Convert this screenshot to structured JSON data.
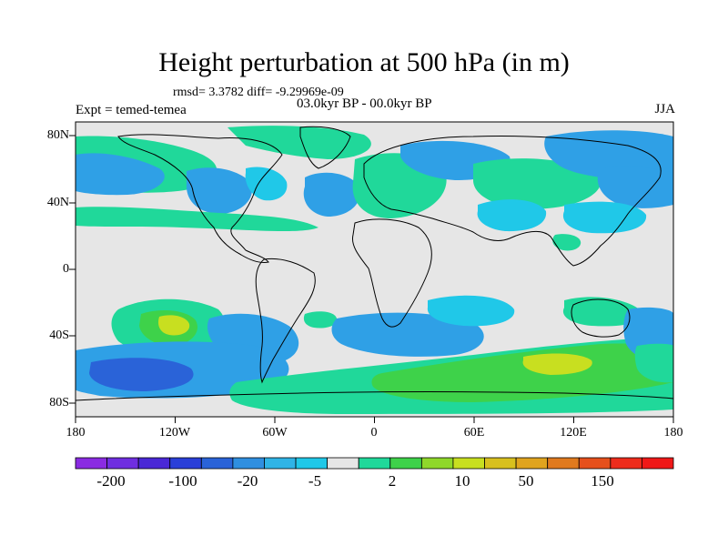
{
  "title": "Height perturbation at 500 hPa (in m)",
  "stats": "rmsd= 3.3782 diff= -9.29969e-09",
  "period": "03.0kyr BP - 00.0kyr BP",
  "experiment": "Expt = temed-temea",
  "season": "JJA",
  "lat_labels": [
    "80N",
    "40N",
    "0",
    "40S",
    "80S"
  ],
  "lon_labels": [
    "180",
    "120W",
    "60W",
    "0",
    "60E",
    "120E",
    "180"
  ],
  "colorbar": {
    "colors": [
      "#8a2be2",
      "#6f2ee0",
      "#4a28d6",
      "#2a3fd8",
      "#2a63d8",
      "#2f8fe0",
      "#2fb4e6",
      "#20c8e8",
      "#e6e6e6",
      "#20d89a",
      "#3ed24a",
      "#8fd82a",
      "#c8df20",
      "#d8c01e",
      "#e0a41e",
      "#e07a1e",
      "#e6501c",
      "#ee2c1c",
      "#f01818"
    ],
    "tick_labels": [
      "-200",
      "-100",
      "-20",
      "-5",
      "2",
      "10",
      "50",
      "150"
    ]
  },
  "map_colors": {
    "neutral": "#e6e6e6",
    "light_blue": "#20c8e8",
    "blue": "#2fa0e6",
    "dark_blue": "#2a63d8",
    "teal": "#20d89a",
    "green": "#3ed24a",
    "yellow_green": "#c8df20",
    "coast": "#000000"
  }
}
